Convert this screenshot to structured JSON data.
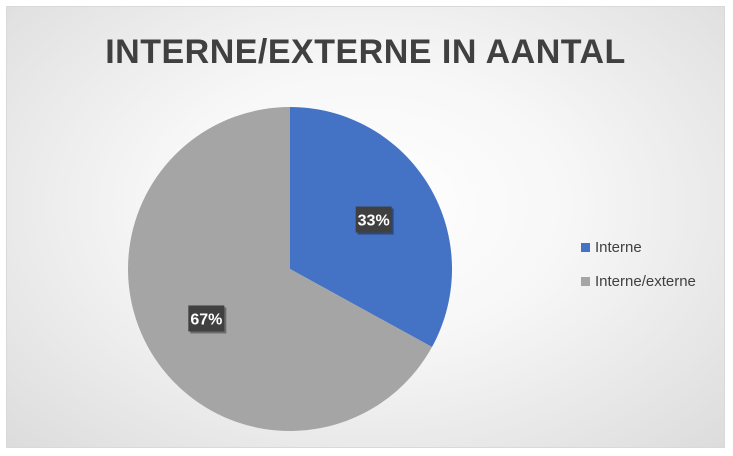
{
  "chart_data": {
    "type": "pie",
    "title": "INTERNE/EXTERNE IN AANTAL",
    "categories": [
      "Interne",
      "Interne/externe"
    ],
    "values": [
      33,
      67
    ],
    "labels": [
      "33%",
      "67%"
    ],
    "colors": [
      "#4472C4",
      "#A5A5A5"
    ],
    "legend_position": "right",
    "start_angle_deg": 0
  }
}
